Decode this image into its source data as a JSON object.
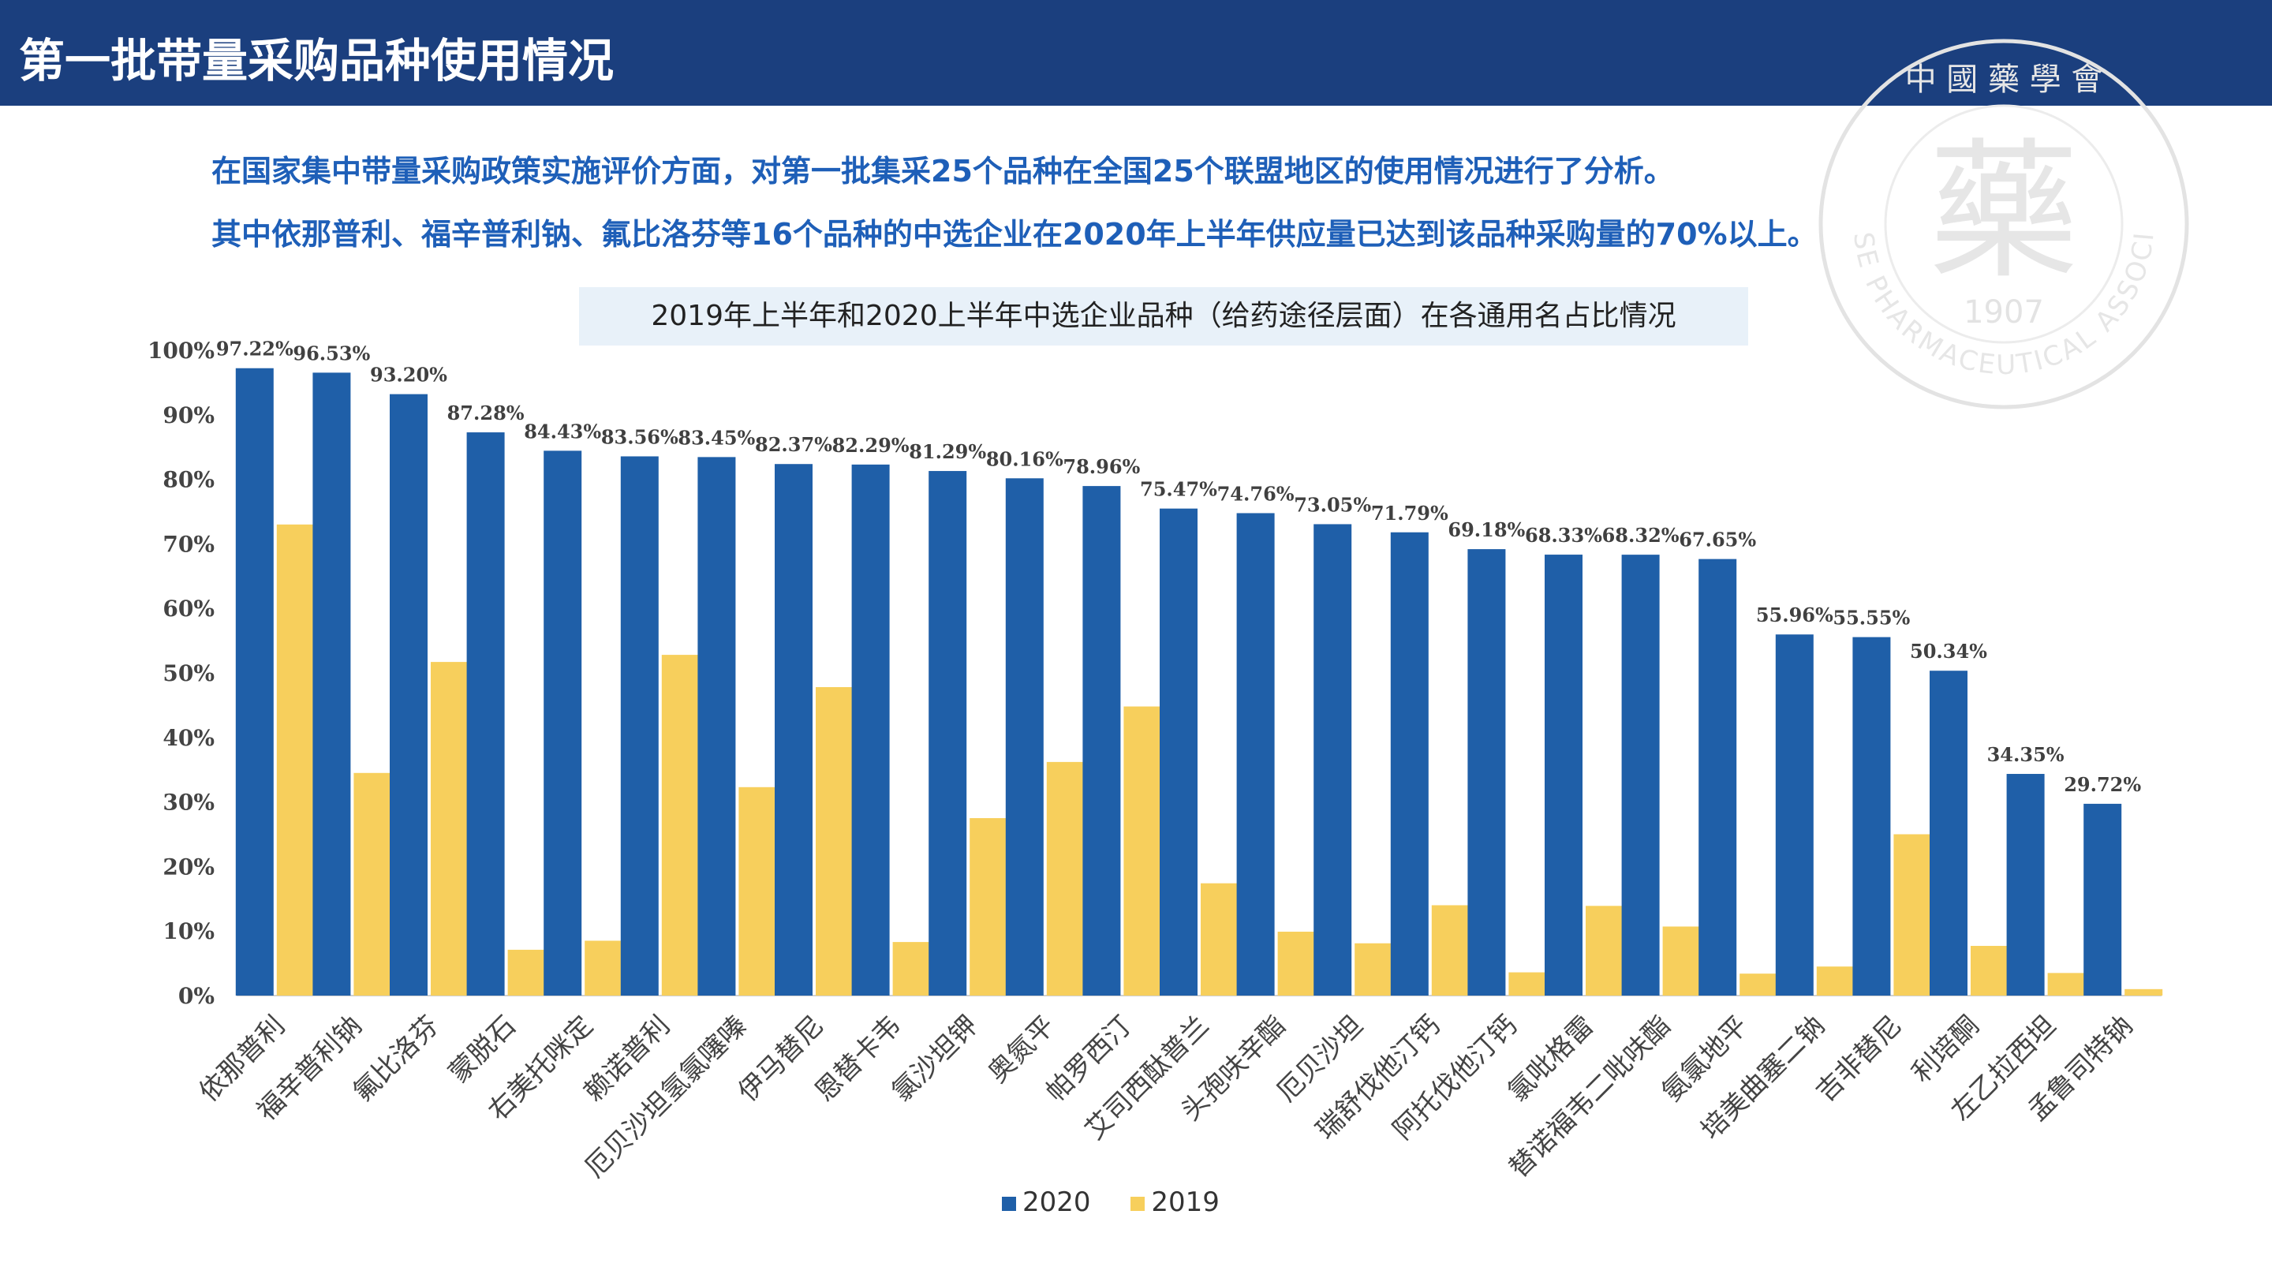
{
  "page": {
    "title": "第一批带量采购品种使用情况",
    "intro_line1": "在国家集中带量采购政策实施评价方面，对第一批集采25个品种在全国25个联盟地区的使用情况进行了分析。",
    "intro_line2": "其中依那普利、福辛普利钠、氟比洛芬等16个品种的中选企业在2020年上半年供应量已达到该品种采购量的70%以上。"
  },
  "watermark": {
    "year": "1907",
    "arc_text": "CHINESE PHARMACEUTICAL ASSOCIATION",
    "chinese": "中 國 藥 學 會",
    "glyph": "藥"
  },
  "colors": {
    "header_bg": "#1b3f7e",
    "series_2020": "#1f5fa8",
    "series_2019": "#f7cf5c"
  },
  "chart_data": {
    "type": "bar",
    "title": "2019年上半年和2020上半年中选企业品种（给药途径层面）在各通用名占比情况",
    "categories": [
      "依那普利",
      "福辛普利钠",
      "氟比洛芬",
      "蒙脱石",
      "右美托咪定",
      "赖诺普利",
      "厄贝沙坦氢氯噻嗪",
      "伊马替尼",
      "恩替卡韦",
      "氯沙坦钾",
      "奥氮平",
      "帕罗西汀",
      "艾司西酞普兰",
      "头孢呋辛酯",
      "厄贝沙坦",
      "瑞舒伐他汀钙",
      "阿托伐他汀钙",
      "氯吡格雷",
      "替诺福韦二吡呋酯",
      "氨氯地平",
      "培美曲塞二钠",
      "吉非替尼",
      "利培酮",
      "左乙拉西坦",
      "孟鲁司特钠"
    ],
    "series": [
      {
        "name": "2020",
        "values": [
          97.22,
          96.53,
          93.2,
          87.28,
          84.43,
          83.56,
          83.45,
          82.37,
          82.29,
          81.29,
          80.16,
          78.96,
          75.47,
          74.76,
          73.05,
          71.79,
          69.18,
          68.33,
          68.32,
          67.65,
          55.96,
          55.55,
          50.34,
          34.35,
          29.72
        ]
      },
      {
        "name": "2019",
        "values": [
          73.0,
          34.5,
          51.7,
          7.1,
          8.5,
          52.8,
          32.3,
          47.8,
          8.3,
          27.5,
          36.2,
          44.8,
          17.4,
          9.9,
          8.1,
          14.0,
          3.6,
          13.9,
          10.7,
          3.4,
          4.5,
          25.0,
          7.7,
          3.5,
          1.0
        ]
      }
    ],
    "data_labels": [
      "97.22%",
      "96.53%",
      "93.20%",
      "87.28%",
      "84.43%",
      "83.56%",
      "83.45%",
      "82.37%",
      "82.29%",
      "81.29%",
      "80.16%",
      "78.96%",
      "75.47%",
      "74.76%",
      "73.05%",
      "71.79%",
      "69.18%",
      "68.33%",
      "68.32%",
      "67.65%",
      "55.96%",
      "55.55%",
      "50.34%",
      "34.35%",
      "29.72%"
    ],
    "y_ticks": [
      "0%",
      "10%",
      "20%",
      "30%",
      "40%",
      "50%",
      "60%",
      "70%",
      "80%",
      "90%",
      "100%"
    ],
    "ylim": [
      0,
      100
    ],
    "grid": false,
    "legend_position": "bottom"
  }
}
